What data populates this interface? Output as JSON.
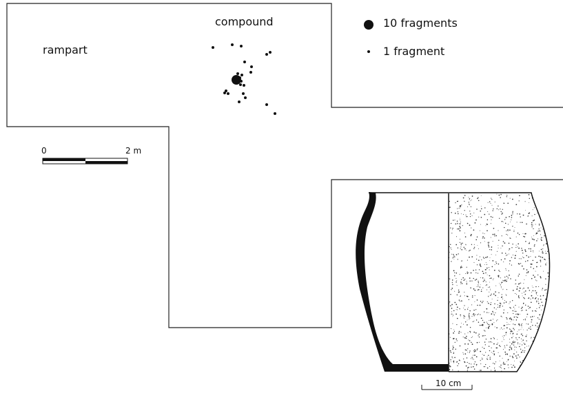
{
  "labels": {
    "compound": "compound",
    "rampart": "rampart"
  },
  "legend": [
    {
      "label": "10 fragments"
    },
    {
      "label": "1 fragment"
    }
  ],
  "map_scale": {
    "start": "0",
    "end": "2 m"
  },
  "vessel_scale": {
    "label": "10 cm"
  }
}
